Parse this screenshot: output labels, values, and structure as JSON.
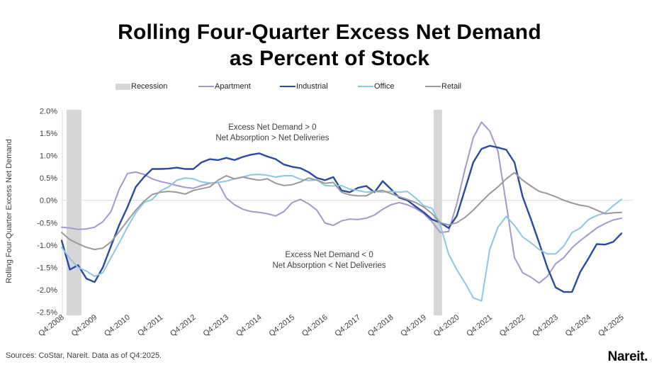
{
  "title": {
    "line1": "Rolling Four-Quarter Excess Net Demand",
    "line2": "as Percent of Stock"
  },
  "legend": {
    "items": [
      {
        "label": "Recession",
        "color": "#d6d6d6",
        "swatch": "box"
      },
      {
        "label": "Apartment",
        "color": "#a698cd",
        "swatch": "line"
      },
      {
        "label": "Industrial",
        "color": "#2a4aa4",
        "swatch": "line"
      },
      {
        "label": "Office",
        "color": "#8cc8e2",
        "swatch": "line"
      },
      {
        "label": "Retail",
        "color": "#9a9a9a",
        "swatch": "line"
      }
    ]
  },
  "footer": {
    "sources": "Sources: CoStar, Nareit. Data as of Q4:2025.",
    "logo": "Nareit."
  },
  "chart_data": {
    "type": "line",
    "title": "Rolling Four-Quarter Excess Net Demand as Percent of Stock",
    "ylabel": "Rolling Four-Quarter Excess Net Demand",
    "xlabel": "",
    "ylim": [
      -2.5,
      2.0
    ],
    "grid": "zero-line-only",
    "legend_position": "top",
    "x_unit": "quarter",
    "x_start": "Q4:2008",
    "x_end": "Q4:2025",
    "x_tick_every_quarters": 4,
    "x_tick_labels": [
      "Q4:2008",
      "Q4:2009",
      "Q4:2010",
      "Q4:2011",
      "Q4:2012",
      "Q4:2013",
      "Q4:2014",
      "Q4:2015",
      "Q4:2016",
      "Q4:2017",
      "Q4:2018",
      "Q4:2019",
      "Q4:2020",
      "Q4:2021",
      "Q4:2022",
      "Q4:2023",
      "Q4:2024",
      "Q4:2025"
    ],
    "y_ticks": [
      {
        "value": 2.0,
        "label": "2.0%"
      },
      {
        "value": 1.5,
        "label": "1.5%"
      },
      {
        "value": 1.0,
        "label": "1.0%"
      },
      {
        "value": 0.5,
        "label": "0.5%"
      },
      {
        "value": 0.0,
        "label": "0.0%"
      },
      {
        "value": -0.5,
        "label": "-0.5%"
      },
      {
        "value": -1.0,
        "label": "-1.0%"
      },
      {
        "value": -1.5,
        "label": "-1.5%"
      },
      {
        "value": -2.0,
        "label": "-2.0%"
      },
      {
        "value": -2.5,
        "label": "-2.5%"
      }
    ],
    "recession_bands": [
      {
        "from_quarter": 0.6,
        "to_quarter": 2.4,
        "color": "#d6d6d6"
      },
      {
        "from_quarter": 45.2,
        "to_quarter": 46.2,
        "color": "#d6d6d6"
      }
    ],
    "annotations": [
      {
        "lines": [
          "Excess Net Demand > 0",
          "Net Absorption > Net Deliveries"
        ],
        "x_quarter": 25.6,
        "y_value": 1.58
      },
      {
        "lines": [
          "Excess Net Demand < 0",
          "Net Absorption < Net Deliveries"
        ],
        "x_quarter": 32.5,
        "y_value": -1.27
      }
    ],
    "series": [
      {
        "name": "Apartment",
        "color": "#a698cd",
        "width": 2,
        "values": [
          -0.6,
          -0.62,
          -0.65,
          -0.64,
          -0.6,
          -0.48,
          -0.25,
          0.25,
          0.6,
          0.63,
          0.58,
          0.48,
          0.42,
          0.38,
          0.33,
          0.29,
          0.27,
          0.33,
          0.38,
          0.4,
          0.05,
          -0.1,
          -0.2,
          -0.25,
          -0.27,
          -0.3,
          -0.35,
          -0.25,
          -0.05,
          0.02,
          -0.08,
          -0.22,
          -0.51,
          -0.56,
          -0.46,
          -0.42,
          -0.43,
          -0.4,
          -0.33,
          -0.2,
          -0.1,
          -0.05,
          -0.1,
          -0.18,
          -0.3,
          -0.48,
          -0.72,
          -0.7,
          -0.08,
          0.7,
          1.4,
          1.75,
          1.55,
          1.1,
          -0.08,
          -1.28,
          -1.62,
          -1.72,
          -1.85,
          -1.7,
          -1.42,
          -1.28,
          -1.06,
          -0.9,
          -0.76,
          -0.62,
          -0.52,
          -0.44,
          -0.4
        ]
      },
      {
        "name": "Industrial",
        "color": "#2a4aa4",
        "width": 2.4,
        "values": [
          -0.9,
          -1.55,
          -1.45,
          -1.75,
          -1.83,
          -1.5,
          -1.02,
          -0.55,
          -0.15,
          0.3,
          0.52,
          0.7,
          0.7,
          0.71,
          0.73,
          0.7,
          0.7,
          0.85,
          0.92,
          0.9,
          0.95,
          0.9,
          0.97,
          1.02,
          1.05,
          0.98,
          0.92,
          0.8,
          0.75,
          0.72,
          0.63,
          0.5,
          0.45,
          0.52,
          0.22,
          0.18,
          0.28,
          0.32,
          0.18,
          0.43,
          0.25,
          0.06,
          0.0,
          -0.14,
          -0.27,
          -0.43,
          -0.5,
          -0.62,
          -0.35,
          0.25,
          0.85,
          1.15,
          1.22,
          1.18,
          1.13,
          0.85,
          0.08,
          -0.42,
          -0.95,
          -1.5,
          -1.95,
          -2.05,
          -2.05,
          -1.6,
          -1.3,
          -0.98,
          -0.99,
          -0.93,
          -0.74
        ]
      },
      {
        "name": "Office",
        "color": "#8cc8e2",
        "width": 2,
        "values": [
          -1.05,
          -1.3,
          -1.5,
          -1.58,
          -1.7,
          -1.62,
          -1.28,
          -0.95,
          -0.6,
          -0.28,
          -0.05,
          0.02,
          0.21,
          0.3,
          0.45,
          0.5,
          0.48,
          0.41,
          0.39,
          0.4,
          0.43,
          0.48,
          0.52,
          0.57,
          0.58,
          0.56,
          0.52,
          0.55,
          0.55,
          0.47,
          0.44,
          0.46,
          0.33,
          0.32,
          0.33,
          0.25,
          0.22,
          0.18,
          0.2,
          0.18,
          0.2,
          0.18,
          0.2,
          0.05,
          -0.12,
          -0.18,
          -0.55,
          -1.2,
          -1.55,
          -1.85,
          -2.18,
          -2.25,
          -1.1,
          -0.6,
          -0.36,
          -0.56,
          -0.82,
          -0.95,
          -1.1,
          -1.2,
          -1.2,
          -1.02,
          -0.72,
          -0.62,
          -0.43,
          -0.34,
          -0.28,
          -0.12,
          0.02
        ]
      },
      {
        "name": "Retail",
        "color": "#9a9a9a",
        "width": 2,
        "values": [
          -0.72,
          -0.88,
          -0.97,
          -1.05,
          -1.1,
          -1.07,
          -0.93,
          -0.7,
          -0.46,
          -0.22,
          -0.02,
          0.13,
          0.18,
          0.2,
          0.18,
          0.14,
          0.22,
          0.26,
          0.3,
          0.45,
          0.55,
          0.48,
          0.52,
          0.48,
          0.45,
          0.48,
          0.38,
          0.33,
          0.35,
          0.41,
          0.5,
          0.45,
          0.38,
          0.4,
          0.18,
          0.12,
          0.1,
          0.1,
          0.2,
          0.22,
          0.15,
          0.08,
          0.02,
          -0.05,
          -0.15,
          -0.3,
          -0.5,
          -0.55,
          -0.5,
          -0.38,
          -0.22,
          -0.03,
          0.15,
          0.3,
          0.48,
          0.62,
          0.45,
          0.32,
          0.2,
          0.15,
          0.08,
          0.0,
          -0.06,
          -0.11,
          -0.14,
          -0.22,
          -0.3,
          -0.28,
          -0.27
        ]
      }
    ],
    "colors": {
      "zero_line": "#d9d9d9",
      "axis_line": "#d9d9d9",
      "tick_text": "#404040",
      "annotation_text": "#404040"
    }
  }
}
